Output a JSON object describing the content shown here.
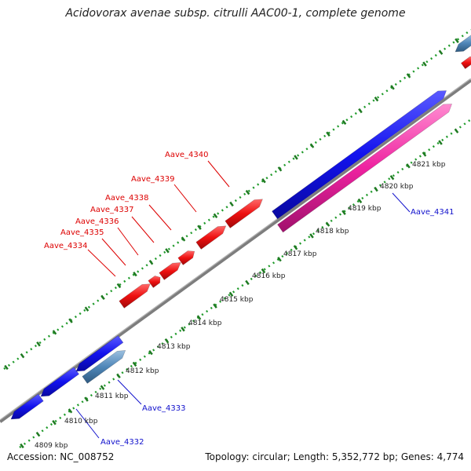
{
  "title": "Acidovorax avenae subsp. citrulli AAC00-1, complete genome",
  "footer": {
    "accession": "Accession: NC_008752",
    "summary": "Topology: circular; Length: 5,352,772 bp; Genes: 4,774"
  },
  "colors": {
    "backbone": "#808080",
    "dotted_track": "#1f9a2a",
    "gene_blue": "#1010e8",
    "gene_red": "#ee1010",
    "gene_pink": "#ee22a0",
    "gene_steelblue": "#4f86b8",
    "label_blue": "#1010cc",
    "label_red": "#dd0000"
  },
  "scale_ticks": [
    "4809 kbp",
    "4810 kbp",
    "4811 kbp",
    "4812 kbp",
    "4813 kbp",
    "4814 kbp",
    "4815 kbp",
    "4816 kbp",
    "4817 kbp",
    "4818 kbp",
    "4819 kbp",
    "4820 kbp",
    "4821 kbp"
  ],
  "gene_labels": [
    {
      "name": "Aave_4332",
      "color": "blue"
    },
    {
      "name": "Aave_4333",
      "color": "blue"
    },
    {
      "name": "Aave_4334",
      "color": "red"
    },
    {
      "name": "Aave_4335",
      "color": "red"
    },
    {
      "name": "Aave_4336",
      "color": "red"
    },
    {
      "name": "Aave_4337",
      "color": "red"
    },
    {
      "name": "Aave_4338",
      "color": "red"
    },
    {
      "name": "Aave_4339",
      "color": "red"
    },
    {
      "name": "Aave_4340",
      "color": "red"
    },
    {
      "name": "Aave_4341",
      "color": "blue"
    }
  ]
}
